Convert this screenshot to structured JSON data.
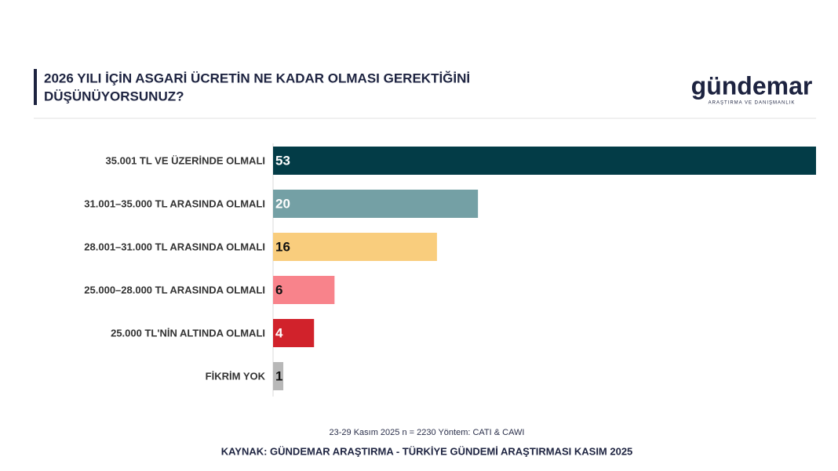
{
  "chart_data": {
    "type": "hbar",
    "title_lines": [
      "2026 YILI İÇİN ASGARİ ÜCRETİN NE KADAR OLMASI GEREKTİĞİNİ",
      "DÜŞÜNÜYORSUNUZ?"
    ],
    "logo": "gündemar",
    "logo_subtitle": "ARAŞTIRMA VE DANIŞMANLIK",
    "categories": [
      "35.001 TL VE ÜZERİNDE OLMALI",
      "31.001–35.000 TL ARASINDA OLMALI",
      "28.001–31.000 TL ARASINDA OLMALI",
      "25.000–28.000 TL ARASINDA OLMALI",
      "25.000 TL'NİN ALTINDA OLMALI",
      "FİKRİM YOK"
    ],
    "values": [
      53,
      20,
      16,
      6,
      4,
      1
    ],
    "colors": [
      "#033c47",
      "#74a0a5",
      "#f9cd7d",
      "#f8838b",
      "#d1222b",
      "#b8b8b8"
    ],
    "label_colors": [
      "#ffffff",
      "#ffffff",
      "#111111",
      "#111111",
      "#ffffff",
      "#111111"
    ],
    "note": "23-29 Kasım 2025 n = 2230 Yöntem: CATI & CAWI",
    "source": "KAYNAK: GÜNDEMAR ARAŞTIRMA - TÜRKİYE GÜNDEMİ ARAŞTIRMASI KASIM 2025"
  }
}
